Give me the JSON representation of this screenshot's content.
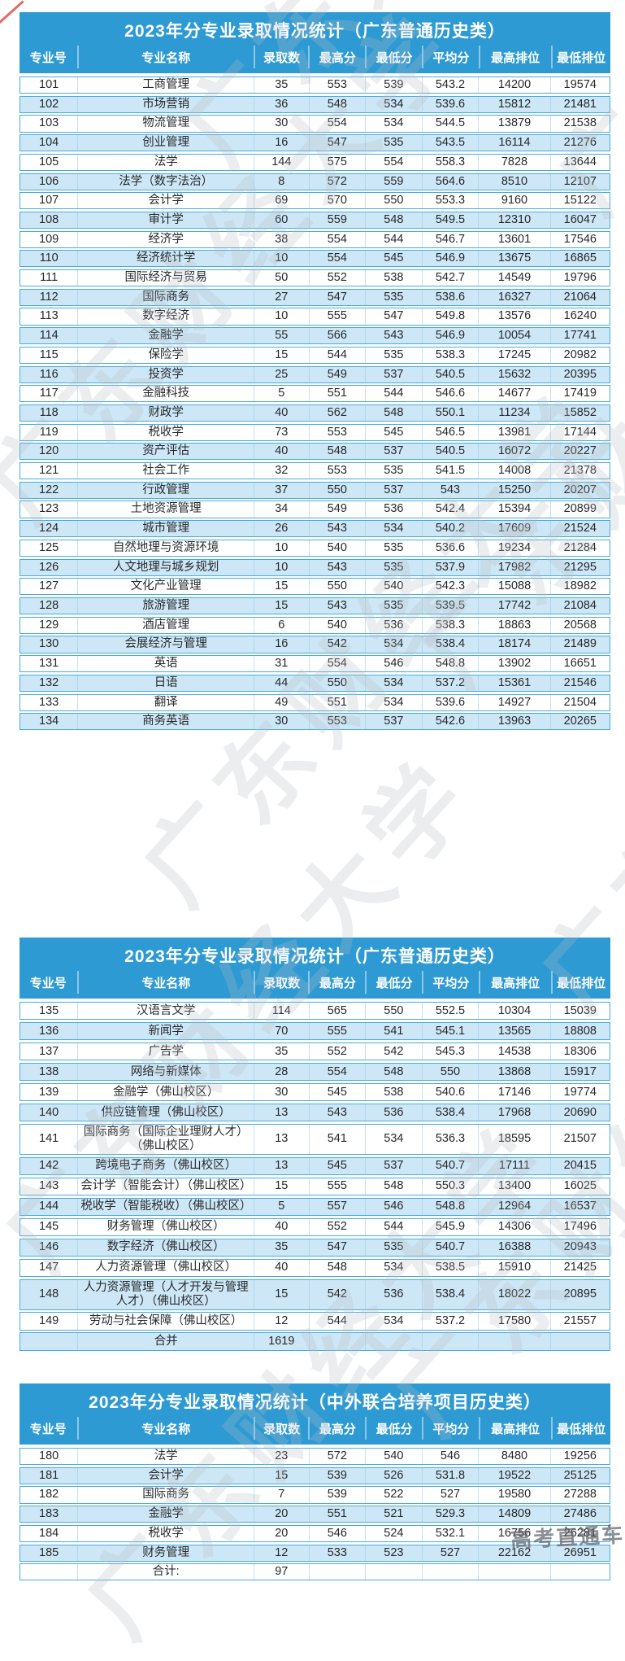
{
  "page": {
    "university_watermark": "广东财经大学",
    "brand_watermark": "高考直通车"
  },
  "columns": [
    "专业号",
    "专业名称",
    "录取数",
    "最高分",
    "最低分",
    "平均分",
    "最高排位",
    "最低排位"
  ],
  "tables": [
    {
      "title": "2023年分专业录取情况统计（广东普通历史类）",
      "rows": [
        [
          "101",
          "工商管理",
          "35",
          "553",
          "539",
          "543.2",
          "14200",
          "19574"
        ],
        [
          "102",
          "市场营销",
          "36",
          "548",
          "534",
          "539.6",
          "15812",
          "21481"
        ],
        [
          "103",
          "物流管理",
          "30",
          "554",
          "534",
          "544.5",
          "13879",
          "21538"
        ],
        [
          "104",
          "创业管理",
          "16",
          "547",
          "535",
          "543.5",
          "16114",
          "21276"
        ],
        [
          "105",
          "法学",
          "144",
          "575",
          "554",
          "558.3",
          "7828",
          "13644"
        ],
        [
          "106",
          "法学（数字法治）",
          "8",
          "572",
          "559",
          "564.6",
          "8510",
          "12107"
        ],
        [
          "107",
          "会计学",
          "69",
          "570",
          "550",
          "553.3",
          "9160",
          "15122"
        ],
        [
          "108",
          "审计学",
          "60",
          "559",
          "548",
          "549.5",
          "12310",
          "16047"
        ],
        [
          "109",
          "经济学",
          "38",
          "554",
          "544",
          "546.7",
          "13601",
          "17546"
        ],
        [
          "110",
          "经济统计学",
          "10",
          "554",
          "545",
          "546.9",
          "13675",
          "16865"
        ],
        [
          "111",
          "国际经济与贸易",
          "50",
          "552",
          "538",
          "542.7",
          "14549",
          "19796"
        ],
        [
          "112",
          "国际商务",
          "27",
          "547",
          "535",
          "538.6",
          "16327",
          "21064"
        ],
        [
          "113",
          "数字经济",
          "10",
          "555",
          "547",
          "549.8",
          "13576",
          "16240"
        ],
        [
          "114",
          "金融学",
          "55",
          "566",
          "543",
          "546.9",
          "10054",
          "17741"
        ],
        [
          "115",
          "保险学",
          "15",
          "544",
          "535",
          "538.3",
          "17245",
          "20982"
        ],
        [
          "116",
          "投资学",
          "25",
          "549",
          "537",
          "540.5",
          "15632",
          "20395"
        ],
        [
          "117",
          "金融科技",
          "5",
          "551",
          "544",
          "546.6",
          "14677",
          "17419"
        ],
        [
          "118",
          "财政学",
          "40",
          "562",
          "548",
          "550.1",
          "11234",
          "15852"
        ],
        [
          "119",
          "税收学",
          "73",
          "553",
          "545",
          "546.5",
          "13981",
          "17144"
        ],
        [
          "120",
          "资产评估",
          "40",
          "548",
          "537",
          "540.5",
          "16072",
          "20227"
        ],
        [
          "121",
          "社会工作",
          "32",
          "553",
          "535",
          "541.5",
          "14008",
          "21378"
        ],
        [
          "122",
          "行政管理",
          "37",
          "550",
          "537",
          "543",
          "15250",
          "20207"
        ],
        [
          "123",
          "土地资源管理",
          "34",
          "549",
          "536",
          "542.4",
          "15394",
          "20899"
        ],
        [
          "124",
          "城市管理",
          "26",
          "543",
          "534",
          "540.2",
          "17609",
          "21524"
        ],
        [
          "125",
          "自然地理与资源环境",
          "10",
          "540",
          "535",
          "536.6",
          "19234",
          "21284"
        ],
        [
          "126",
          "人文地理与城乡规划",
          "10",
          "543",
          "535",
          "537.9",
          "17982",
          "21295"
        ],
        [
          "127",
          "文化产业管理",
          "15",
          "550",
          "540",
          "542.3",
          "15088",
          "18982"
        ],
        [
          "128",
          "旅游管理",
          "15",
          "543",
          "535",
          "539.5",
          "17742",
          "21084"
        ],
        [
          "129",
          "酒店管理",
          "6",
          "540",
          "536",
          "538.3",
          "18863",
          "20568"
        ],
        [
          "130",
          "会展经济与管理",
          "16",
          "542",
          "534",
          "538.4",
          "18174",
          "21489"
        ],
        [
          "131",
          "英语",
          "31",
          "554",
          "546",
          "548.8",
          "13902",
          "16651"
        ],
        [
          "132",
          "日语",
          "44",
          "550",
          "534",
          "537.2",
          "15361",
          "21546"
        ],
        [
          "133",
          "翻译",
          "49",
          "551",
          "534",
          "539.6",
          "14927",
          "21504"
        ],
        [
          "134",
          "商务英语",
          "30",
          "553",
          "537",
          "542.6",
          "13963",
          "20265"
        ]
      ]
    },
    {
      "title": "2023年分专业录取情况统计（广东普通历史类）",
      "rows": [
        [
          "135",
          "汉语言文学",
          "114",
          "565",
          "550",
          "552.5",
          "10304",
          "15039"
        ],
        [
          "136",
          "新闻学",
          "70",
          "555",
          "541",
          "545.1",
          "13565",
          "18808"
        ],
        [
          "137",
          "广告学",
          "35",
          "552",
          "542",
          "545.3",
          "14538",
          "18306"
        ],
        [
          "138",
          "网络与新媒体",
          "28",
          "554",
          "548",
          "550",
          "13868",
          "15917"
        ],
        [
          "139",
          "金融学（佛山校区）",
          "30",
          "545",
          "538",
          "540.6",
          "17146",
          "19774"
        ],
        [
          "140",
          "供应链管理（佛山校区）",
          "13",
          "543",
          "536",
          "538.4",
          "17968",
          "20690"
        ],
        [
          "141",
          "国际商务（国际企业理财人才）（佛山校区）",
          "13",
          "541",
          "534",
          "536.3",
          "18595",
          "21507"
        ],
        [
          "142",
          "跨境电子商务（佛山校区）",
          "13",
          "545",
          "537",
          "540.7",
          "17111",
          "20415"
        ],
        [
          "143",
          "会计学（智能会计）（佛山校区）",
          "15",
          "555",
          "548",
          "550.3",
          "13400",
          "16025"
        ],
        [
          "144",
          "税收学（智能税收）（佛山校区）",
          "5",
          "557",
          "546",
          "548.8",
          "12964",
          "16537"
        ],
        [
          "145",
          "财务管理（佛山校区）",
          "40",
          "552",
          "544",
          "545.9",
          "14306",
          "17496"
        ],
        [
          "146",
          "数字经济（佛山校区）",
          "35",
          "547",
          "535",
          "540.7",
          "16388",
          "20943"
        ],
        [
          "147",
          "人力资源管理（佛山校区）",
          "40",
          "548",
          "534",
          "538.5",
          "15910",
          "21425"
        ],
        [
          "148",
          "人力资源管理（人才开发与管理人才）（佛山校区）",
          "15",
          "542",
          "536",
          "538.4",
          "18022",
          "20895"
        ],
        [
          "149",
          "劳动与社会保障（佛山校区）",
          "12",
          "544",
          "534",
          "537.2",
          "17580",
          "21557"
        ],
        [
          "",
          "合并",
          "1619",
          "",
          "",
          "",
          "",
          ""
        ]
      ]
    },
    {
      "title": "2023年分专业录取情况统计（中外联合培养项目历史类）",
      "rows": [
        [
          "180",
          "法学",
          "23",
          "572",
          "540",
          "546",
          "8480",
          "19256"
        ],
        [
          "181",
          "会计学",
          "15",
          "539",
          "526",
          "531.8",
          "19522",
          "25125"
        ],
        [
          "182",
          "国际商务",
          "7",
          "539",
          "522",
          "527",
          "19580",
          "27288"
        ],
        [
          "183",
          "金融学",
          "20",
          "551",
          "521",
          "529.3",
          "14809",
          "27486"
        ],
        [
          "184",
          "税收学",
          "20",
          "546",
          "524",
          "532.1",
          "16756",
          "26281"
        ],
        [
          "185",
          "财务管理",
          "12",
          "533",
          "523",
          "527",
          "22162",
          "26951"
        ],
        [
          "",
          "合计:",
          "97",
          "",
          "",
          "",
          "",
          ""
        ]
      ]
    }
  ],
  "colors": {
    "header_blue": "#2D9AD3",
    "row_alt_blue": "#CEE7F6",
    "row_border_blue": "#47ACDE"
  }
}
